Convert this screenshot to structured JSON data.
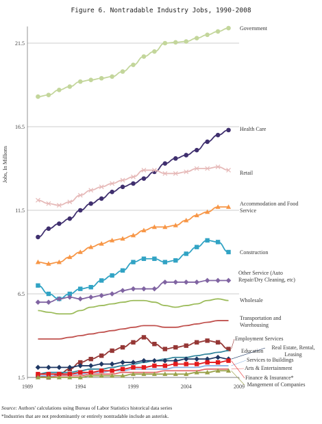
{
  "chart_data": {
    "type": "line",
    "title": "Figure 6. Nontradable Industry Jobs, 1990-2008",
    "y_label": "Jobs, In Millions",
    "x": [
      1990,
      1991,
      1992,
      1993,
      1994,
      1995,
      1996,
      1997,
      1998,
      1999,
      2000,
      2001,
      2002,
      2003,
      2004,
      2005,
      2006,
      2007,
      2008
    ],
    "xlim": [
      1989,
      2009
    ],
    "xticks": [
      1989,
      1994,
      1999,
      2004,
      2009
    ],
    "ylim": [
      1.5,
      22.5
    ],
    "yticks": [
      1.5,
      6.5,
      11.5,
      16.5,
      21.5
    ],
    "grid": true,
    "series": [
      {
        "name": "Government",
        "color": "#c3d69b",
        "marker": "circle",
        "values": [
          18.3,
          18.4,
          18.7,
          18.9,
          19.2,
          19.3,
          19.4,
          19.5,
          19.8,
          20.2,
          20.7,
          21.0,
          21.5,
          21.55,
          21.6,
          21.8,
          22.0,
          22.2,
          22.4
        ]
      },
      {
        "name": "Health Care",
        "color": "#3f2f6e",
        "marker": "circle",
        "values": [
          9.9,
          10.4,
          10.7,
          11.0,
          11.5,
          11.9,
          12.2,
          12.6,
          12.9,
          13.1,
          13.4,
          13.8,
          14.3,
          14.6,
          14.8,
          15.1,
          15.6,
          16.0,
          16.3
        ]
      },
      {
        "name": "Retail",
        "color": "#e6b9b8",
        "marker": "x",
        "values": [
          12.1,
          11.9,
          11.8,
          12.0,
          12.4,
          12.7,
          12.9,
          13.1,
          13.3,
          13.5,
          13.9,
          13.9,
          13.7,
          13.7,
          13.8,
          14.0,
          14.0,
          14.1,
          13.9
        ]
      },
      {
        "name": "Accommodation and Food Service",
        "color": "#f79646",
        "marker": "triangle",
        "values": [
          8.4,
          8.3,
          8.4,
          8.7,
          9.0,
          9.3,
          9.5,
          9.7,
          9.8,
          10.0,
          10.3,
          10.5,
          10.5,
          10.6,
          10.9,
          11.2,
          11.4,
          11.7,
          11.7
        ]
      },
      {
        "name": "Construction",
        "color": "#31a3c4",
        "marker": "square",
        "values": [
          7.0,
          6.5,
          6.2,
          6.5,
          6.8,
          6.9,
          7.3,
          7.6,
          7.9,
          8.4,
          8.6,
          8.6,
          8.4,
          8.5,
          8.9,
          9.3,
          9.7,
          9.6,
          9.0
        ]
      },
      {
        "name": "Other Service (Auto Repair/Dry Cleaning, etc)",
        "color": "#8064a2",
        "marker": "diamond",
        "values": [
          6.0,
          6.0,
          6.2,
          6.3,
          6.2,
          6.3,
          6.4,
          6.5,
          6.7,
          6.8,
          6.8,
          6.8,
          7.2,
          7.2,
          7.2,
          7.2,
          7.3,
          7.3,
          7.3
        ]
      },
      {
        "name": "Wholesale",
        "color": "#9bbb59",
        "marker": "none",
        "values": [
          5.5,
          5.4,
          5.3,
          5.3,
          5.5,
          5.7,
          5.8,
          5.9,
          6.0,
          6.1,
          6.1,
          6.0,
          5.8,
          5.7,
          5.8,
          5.9,
          6.1,
          6.2,
          6.1
        ]
      },
      {
        "name": "Transportation and Warehousing",
        "color": "#c0504d",
        "marker": "none",
        "values": [
          3.8,
          3.8,
          3.8,
          3.9,
          4.0,
          4.1,
          4.2,
          4.3,
          4.4,
          4.5,
          4.6,
          4.6,
          4.5,
          4.5,
          4.6,
          4.7,
          4.8,
          4.9,
          4.9
        ]
      },
      {
        "name": "Employment Services",
        "color": "#953735",
        "marker": "square",
        "values": [
          1.6,
          1.5,
          1.7,
          2.0,
          2.4,
          2.6,
          2.8,
          3.1,
          3.3,
          3.6,
          3.9,
          3.5,
          3.2,
          3.3,
          3.4,
          3.6,
          3.7,
          3.6,
          3.2
        ]
      },
      {
        "name": "Education",
        "color": "#31849b",
        "marker": "none",
        "values": [
          1.7,
          1.8,
          1.8,
          1.8,
          1.9,
          2.0,
          2.0,
          2.1,
          2.2,
          2.3,
          2.4,
          2.5,
          2.6,
          2.7,
          2.7,
          2.8,
          2.9,
          3.0,
          3.1
        ]
      },
      {
        "name": "Real Estate, Rental, Leasing",
        "color": "#1f3864",
        "marker": "diamond",
        "values": [
          2.1,
          2.1,
          2.1,
          2.1,
          2.2,
          2.2,
          2.3,
          2.3,
          2.4,
          2.4,
          2.5,
          2.5,
          2.5,
          2.5,
          2.6,
          2.6,
          2.6,
          2.7,
          2.6
        ]
      },
      {
        "name": "Services to Buildings",
        "color": "#8db3e2",
        "marker": "none",
        "values": [
          1.6,
          1.6,
          1.6,
          1.7,
          1.7,
          1.8,
          1.8,
          1.9,
          1.9,
          2.0,
          2.0,
          2.0,
          2.0,
          2.1,
          2.1,
          2.1,
          2.2,
          2.2,
          2.2
        ]
      },
      {
        "name": "Arts & Entertainment",
        "color": "#e46c6c",
        "marker": "none",
        "values": [
          1.5,
          1.5,
          1.6,
          1.6,
          1.6,
          1.7,
          1.7,
          1.7,
          1.8,
          1.8,
          1.8,
          1.8,
          1.9,
          1.9,
          1.9,
          1.9,
          2.0,
          2.0,
          2.0
        ]
      },
      {
        "name": "Finance & Insurance*",
        "color": "#e31a1c",
        "marker": "square",
        "values": [
          1.7,
          1.7,
          1.7,
          1.7,
          1.8,
          1.8,
          1.9,
          1.9,
          2.0,
          2.1,
          2.1,
          2.2,
          2.2,
          2.3,
          2.3,
          2.3,
          2.4,
          2.4,
          2.5
        ]
      },
      {
        "name": "Mangement of Companies",
        "color": "#9aa14a",
        "marker": "triangle",
        "values": [
          1.5,
          1.5,
          1.5,
          1.5,
          1.5,
          1.6,
          1.6,
          1.6,
          1.6,
          1.7,
          1.7,
          1.7,
          1.7,
          1.7,
          1.7,
          1.8,
          1.8,
          1.9,
          1.9
        ]
      }
    ],
    "notes": [
      "Source:",
      "Authors' calculations using Bureau of Labor Statistics historical data series",
      "*Industries that are not predominantly or entirely nontradable include an asterisk."
    ]
  }
}
